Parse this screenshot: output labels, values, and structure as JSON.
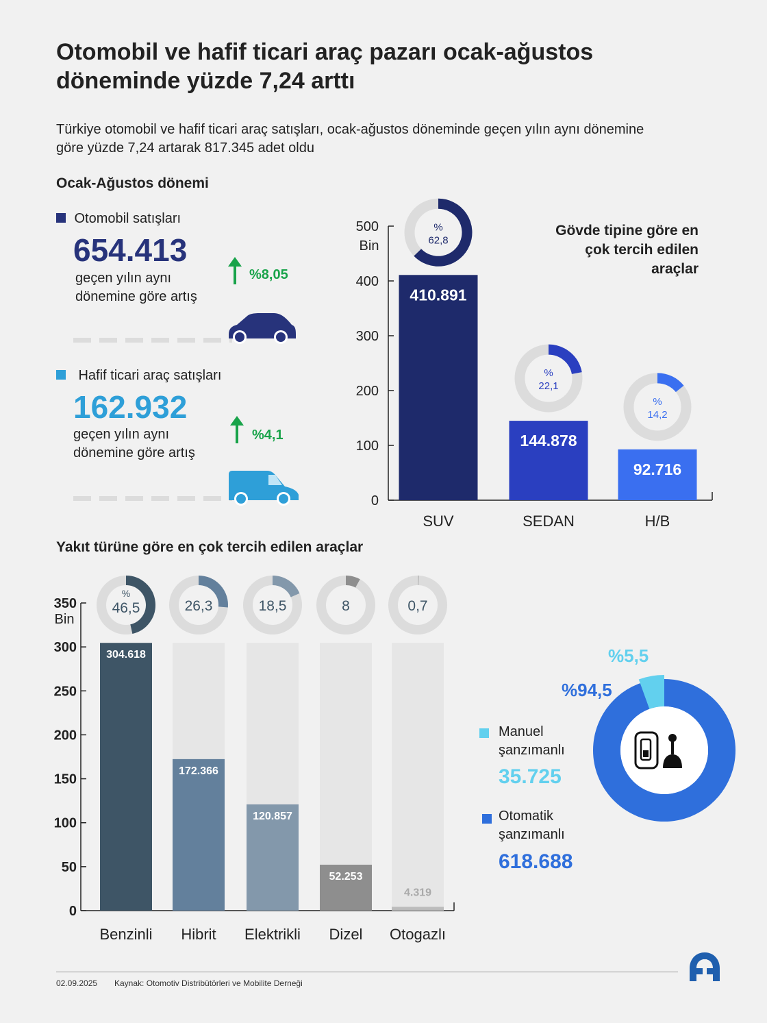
{
  "title": "Otomobil ve hafif ticari araç pazarı ocak-ağustos döneminde yüzde 7,24 arttı",
  "subtitle": "Türkiye otomobil ve hafif ticari araç satışları, ocak-ağustos döneminde geçen yılın aynı dönemine göre yüzde 7,24 artarak 817.345 adet oldu",
  "period_heading": "Ocak-Ağustos dönemi",
  "car_sales": {
    "label": "Otomobil satışları",
    "value": "654.413",
    "note": "geçen yılın aynı dönemine göre artış",
    "change": "%8,05",
    "color": "#27337b"
  },
  "lcv_sales": {
    "label": "Hafif ticari araç satışları",
    "value": "162.932",
    "note": "geçen yılın aynı dönemine göre artış",
    "change": "%4,1",
    "color": "#2e9fd8"
  },
  "body_heading": "Gövde tipine göre en çok tercih edilen araçlar",
  "fuel_heading": "Yakıt türüne göre en çok tercih edilen araçlar",
  "gearbox": {
    "manual_label": "Manuel şanzımanlı",
    "manual_value": "35.725",
    "manual_pct": "%5,5",
    "manual_share": 5.5,
    "manual_color": "#62d0ee",
    "auto_label": "Otomatik şanzımanlı",
    "auto_value": "618.688",
    "auto_pct": "%94,5",
    "auto_color": "#2f6fdc"
  },
  "chart_data": [
    {
      "type": "bar",
      "title": "Gövde tipine göre en çok tercih edilen araçlar",
      "unit": "Bin",
      "ylim": [
        0,
        500
      ],
      "ticks": [
        0,
        100,
        200,
        300,
        400,
        500
      ],
      "categories": [
        "SUV",
        "SEDAN",
        "H/B"
      ],
      "values": [
        410891,
        144878,
        92716
      ],
      "labels": [
        "410.891",
        "144.878",
        "92.716"
      ],
      "shares": [
        62.8,
        22.1,
        14.2
      ],
      "share_labels": [
        "62,8",
        "22,1",
        "14,2"
      ],
      "colors": [
        "#1e2a6b",
        "#2a3fc0",
        "#3a6ff0"
      ]
    },
    {
      "type": "bar",
      "title": "Yakıt türüne göre en çok tercih edilen araçlar",
      "unit": "Bin",
      "ylim": [
        0,
        350
      ],
      "ticks": [
        0,
        50,
        100,
        150,
        200,
        250,
        300,
        350
      ],
      "categories": [
        "Benzinli",
        "Hibrit",
        "Elektrikli",
        "Dizel",
        "Otogazlı"
      ],
      "values": [
        304618,
        172366,
        120857,
        52253,
        4319
      ],
      "labels": [
        "304.618",
        "172.366",
        "120.857",
        "52.253",
        "4.319"
      ],
      "shares": [
        46.5,
        26.3,
        18.5,
        8,
        0.7
      ],
      "share_labels": [
        "46,5",
        "26,3",
        "18,5",
        "8",
        "0,7"
      ],
      "colors": [
        "#3e5566",
        "#63809c",
        "#8398ab",
        "#8e8e8e",
        "#bcbcbc"
      ]
    }
  ],
  "footer": {
    "date": "02.09.2025",
    "source": "Kaynak: Otomotiv Distribütörleri ve Mobilite Derneği",
    "logo_text": "AA"
  }
}
